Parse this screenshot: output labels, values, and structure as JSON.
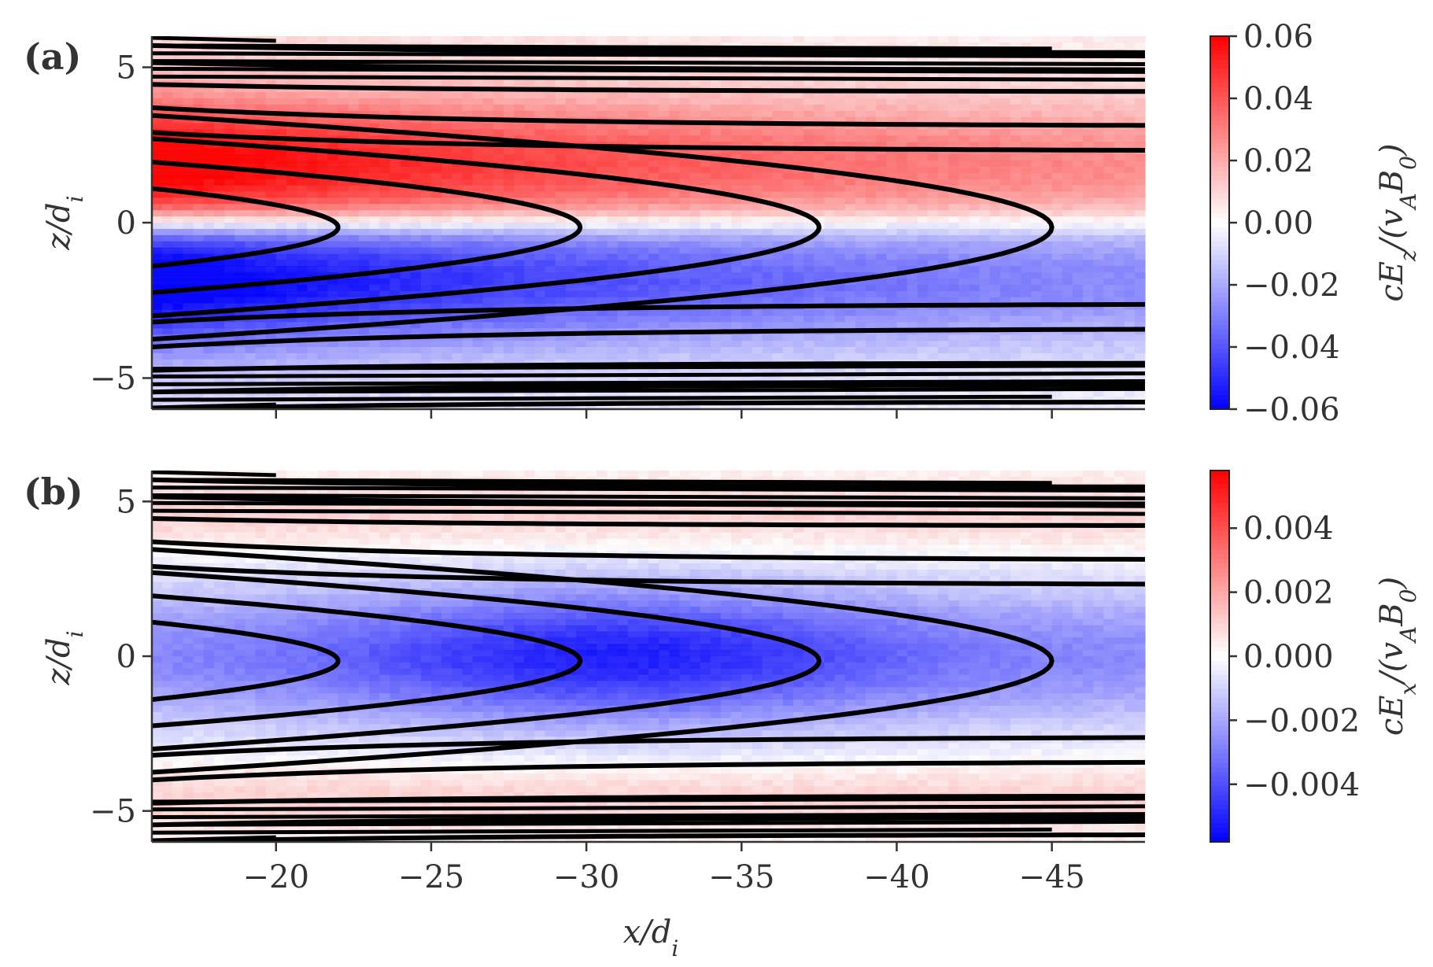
{
  "chart_data": [
    {
      "type": "heatmap",
      "panel_label": "(a)",
      "title": "",
      "xlabel": "",
      "ylabel": "z/d_i",
      "ylabel_parts": [
        "z",
        "/",
        "d",
        "i"
      ],
      "xlim": [
        -16,
        -48
      ],
      "ylim": [
        -6,
        6
      ],
      "yticks": [
        5,
        0,
        -5
      ],
      "ytick_labels": [
        "5",
        "0",
        "−5"
      ],
      "xticks": [
        -20,
        -25,
        -30,
        -35,
        -40,
        -45
      ],
      "xtick_labels": [
        "",
        "",
        "",
        "",
        "",
        ""
      ],
      "quantity": "cE_z/(v_A B_0)",
      "colorbar": {
        "label": "cE_z/(v_A B_0)",
        "label_parts": [
          "cE",
          "z",
          "/(",
          "v",
          "A",
          "B",
          "0",
          ")"
        ],
        "range": [
          -0.06,
          0.06
        ],
        "ticks": [
          0.06,
          0.04,
          0.02,
          0.0,
          -0.02,
          -0.04,
          -0.06
        ],
        "tick_labels": [
          "0.06",
          "0.04",
          "0.02",
          "0.00",
          "−0.02",
          "−0.04",
          "−0.06"
        ],
        "colormap": "bwr",
        "color_low": "#0000ff",
        "color_mid": "#ffffff",
        "color_high": "#ff0000"
      },
      "field_pattern": "antisymmetric in z: positive (red) above z=0, negative (blue) below, strongest near x=-16 at |z|~2, decaying toward x=-48",
      "contour_color": "#000000",
      "contour_tips_x": [
        -22,
        -29.8,
        -37.5,
        -45
      ],
      "contour_open_offsets_z": [
        3.05,
        3.85,
        4.6,
        5.3,
        5.85
      ]
    },
    {
      "type": "heatmap",
      "panel_label": "(b)",
      "title": "",
      "xlabel": "x/d_i",
      "xlabel_parts": [
        "x",
        "/",
        "d",
        "i"
      ],
      "ylabel": "z/d_i",
      "ylabel_parts": [
        "z",
        "/",
        "d",
        "i"
      ],
      "xlim": [
        -16,
        -48
      ],
      "ylim": [
        -6,
        6
      ],
      "yticks": [
        5,
        0,
        -5
      ],
      "ytick_labels": [
        "5",
        "0",
        "−5"
      ],
      "xticks": [
        -20,
        -25,
        -30,
        -35,
        -40,
        -45
      ],
      "xtick_labels": [
        "−20",
        "−25",
        "−30",
        "−35",
        "−40",
        "−45"
      ],
      "quantity": "cE_x/(v_A B_0)",
      "colorbar": {
        "label": "cE_x/(v_A B_0)",
        "label_parts": [
          "cE",
          "x",
          "/(",
          "v",
          "A",
          "B",
          "0",
          ")"
        ],
        "range": [
          -0.0058,
          0.0058
        ],
        "ticks": [
          0.004,
          0.002,
          0.0,
          -0.002,
          -0.004
        ],
        "tick_labels": [
          "0.004",
          "0.002",
          "0.000",
          "−0.002",
          "−0.004"
        ],
        "colormap": "bwr",
        "color_low": "#0000ff",
        "color_mid": "#ffffff",
        "color_high": "#ff0000"
      },
      "field_pattern": "negative (blue) inside |z|<~3, strongest near x=-30 to -35, weakly positive (light red) at |z|>~3.5",
      "contour_color": "#000000",
      "contour_tips_x": [
        -22,
        -29.8,
        -37.5,
        -45
      ],
      "contour_open_offsets_z": [
        3.05,
        3.85,
        4.6,
        5.3,
        5.85
      ]
    }
  ]
}
